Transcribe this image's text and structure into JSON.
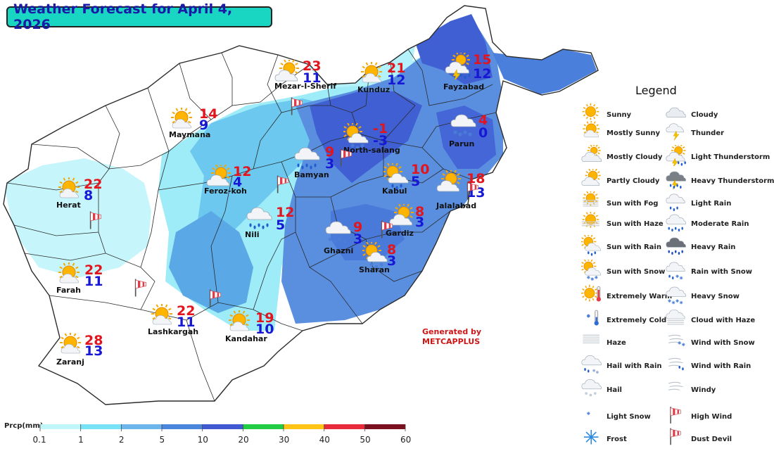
{
  "title": "Weather Forecast for April 4, 2026",
  "cities": [
    {
      "name": "Mezar-I-Sherif",
      "max": "23",
      "min": "11",
      "icon": "partly-cloudy-icon"
    },
    {
      "name": "Kunduz",
      "max": "21",
      "min": "12",
      "icon": "mostly-sunny-icon"
    },
    {
      "name": "Fayzabad",
      "max": "15",
      "min": "12",
      "icon": "light-thunderstorm-icon"
    },
    {
      "name": "Maymana",
      "max": "14",
      "min": "9",
      "icon": "mostly-sunny-icon"
    },
    {
      "name": "North-salang",
      "max": "-1",
      "min": "-3",
      "icon": "sun-with-snow-icon"
    },
    {
      "name": "Parun",
      "max": "4",
      "min": "0",
      "icon": "heavy-snow-icon"
    },
    {
      "name": "Bamyan",
      "max": "9",
      "min": "3",
      "icon": "moderate-rain-icon"
    },
    {
      "name": "Feroz-koh",
      "max": "12",
      "min": "4",
      "icon": "partly-cloudy-icon"
    },
    {
      "name": "Kabul",
      "max": "10",
      "min": "5",
      "icon": "sun-with-rain-icon"
    },
    {
      "name": "Jalalabad",
      "max": "18",
      "min": "13",
      "icon": "partly-cloudy-icon"
    },
    {
      "name": "Herat",
      "max": "22",
      "min": "8",
      "icon": "mostly-sunny-icon"
    },
    {
      "name": "Nili",
      "max": "12",
      "min": "5",
      "icon": "moderate-rain-icon"
    },
    {
      "name": "Gardiz",
      "max": "8",
      "min": "3",
      "icon": "partly-cloudy-icon"
    },
    {
      "name": "Ghazni",
      "max": "9",
      "min": "3",
      "icon": "heavy-snow-icon"
    },
    {
      "name": "Sharan",
      "max": "8",
      "min": "3",
      "icon": "sun-with-snow-icon"
    },
    {
      "name": "Farah",
      "max": "22",
      "min": "11",
      "icon": "mostly-sunny-icon"
    },
    {
      "name": "Lashkargah",
      "max": "22",
      "min": "11",
      "icon": "mostly-sunny-icon"
    },
    {
      "name": "Kandahar",
      "max": "19",
      "min": "10",
      "icon": "mostly-sunny-icon"
    },
    {
      "name": "Zaranj",
      "max": "28",
      "min": "13",
      "icon": "mostly-sunny-icon"
    }
  ],
  "legend": {
    "title": "Legend",
    "items": [
      {
        "label": "Sunny",
        "icon": "sunny-icon"
      },
      {
        "label": "Cloudy",
        "icon": "cloudy-icon"
      },
      {
        "label": "Mostly Sunny",
        "icon": "mostly-sunny-icon"
      },
      {
        "label": "Thunder",
        "icon": "thunder-icon"
      },
      {
        "label": "Mostly Cloudy",
        "icon": "mostly-cloudy-icon"
      },
      {
        "label": "Light Thunderstorm",
        "icon": "light-thunderstorm-icon"
      },
      {
        "label": "Partly Cloudy",
        "icon": "partly-cloudy-icon"
      },
      {
        "label": "Heavy Thunderstorm",
        "icon": "heavy-thunderstorm-icon"
      },
      {
        "label": "Sun with Fog",
        "icon": "sun-with-fog-icon"
      },
      {
        "label": "Light Rain",
        "icon": "light-rain-icon"
      },
      {
        "label": "Sun with Haze",
        "icon": "sun-with-haze-icon"
      },
      {
        "label": "Moderate Rain",
        "icon": "moderate-rain-icon"
      },
      {
        "label": "Sun with Rain",
        "icon": "sun-with-rain-icon"
      },
      {
        "label": "Heavy Rain",
        "icon": "heavy-rain-icon"
      },
      {
        "label": "Sun with Snow",
        "icon": "sun-with-snow-icon"
      },
      {
        "label": "Rain with Snow",
        "icon": "rain-with-snow-icon"
      },
      {
        "label": "Extremely Warm",
        "icon": "extremely-warm-icon"
      },
      {
        "label": "Heavy Snow",
        "icon": "heavy-snow-icon"
      },
      {
        "label": "Extremely Cold",
        "icon": "extremely-cold-icon"
      },
      {
        "label": "Cloud with Haze",
        "icon": "cloud-with-haze-icon"
      },
      {
        "label": "Haze",
        "icon": "haze-icon"
      },
      {
        "label": "Wind with Snow",
        "icon": "wind-with-snow-icon"
      },
      {
        "label": "Hail with Rain",
        "icon": "hail-with-rain-icon"
      },
      {
        "label": "Wind with Rain",
        "icon": "wind-with-rain-icon"
      },
      {
        "label": "Hail",
        "icon": "hail-icon"
      },
      {
        "label": "Windy",
        "icon": "windy-icon"
      },
      {
        "label": "Light Snow",
        "icon": "light-snow-icon"
      },
      {
        "label": "High Wind",
        "icon": "high-wind-icon"
      },
      {
        "label": "Frost",
        "icon": "frost-icon"
      },
      {
        "label": "Dust Devil",
        "icon": "dust-devil-icon"
      }
    ]
  },
  "generated_by": {
    "line1": "Generated by",
    "line2": "METCAPPLUS"
  },
  "precip_scale": {
    "title": "Prcp(mm)",
    "ticks": [
      "0.1",
      "1",
      "2",
      "5",
      "10",
      "20",
      "30",
      "40",
      "50",
      "60"
    ],
    "colors": [
      "#bff7fb",
      "#78e3f6",
      "#6cb6ec",
      "#4a86dc",
      "#4159d0",
      "#22cc44",
      "#ffc416",
      "#e92a3a",
      "#7b1020"
    ]
  },
  "high_wind_markers": 8
}
